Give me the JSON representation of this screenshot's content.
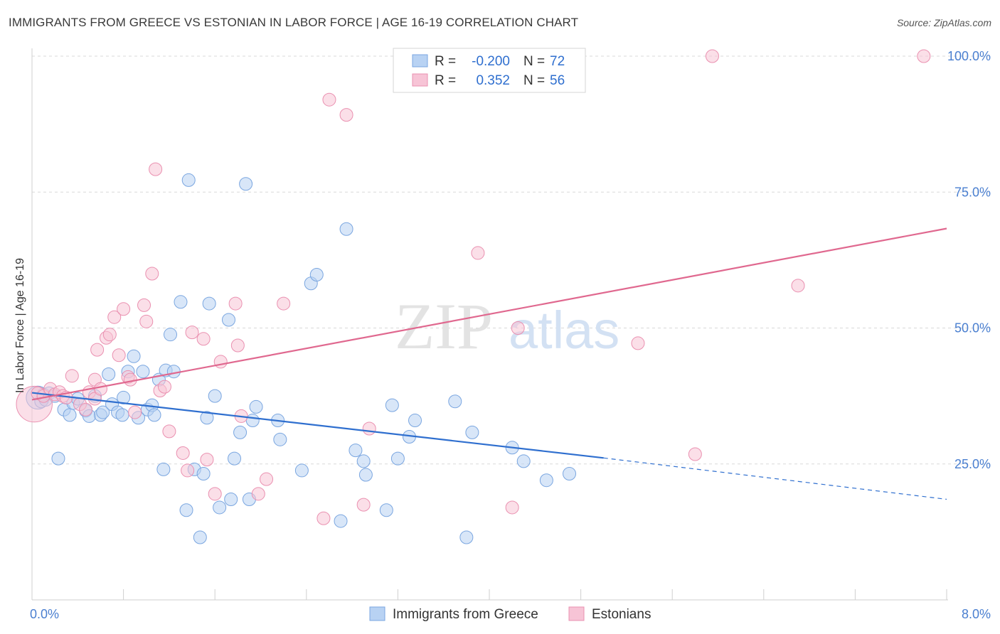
{
  "header": {
    "title": "IMMIGRANTS FROM GREECE VS ESTONIAN IN LABOR FORCE | AGE 16-19 CORRELATION CHART",
    "source": "Source: ZipAtlas.com"
  },
  "watermark": {
    "zip": "ZIP",
    "atlas": "atlas"
  },
  "legend": {
    "rows": [
      {
        "r_label": "R = ",
        "r_value": "-0.200",
        "n_label": "N = ",
        "n_value": "72"
      },
      {
        "r_label": "R = ",
        "r_value": "0.352",
        "n_label": "N = ",
        "n_value": "56"
      }
    ]
  },
  "colors": {
    "blue_fill": "#b8d2f3",
    "blue_stroke": "#7aa6e0",
    "blue_line": "#2f6fcf",
    "pink_fill": "#f7c4d6",
    "pink_stroke": "#ea90b0",
    "pink_line": "#e0688f",
    "accent_text": "#2f6fcf",
    "grid": "#d9d9d9"
  },
  "chart_data": {
    "type": "scatter",
    "title": "IMMIGRANTS FROM GREECE VS ESTONIAN IN LABOR FORCE | AGE 16-19 CORRELATION CHART",
    "xlabel": "",
    "ylabel": "In Labor Force | Age 16-19",
    "xlim": [
      0,
      8
    ],
    "ylim": [
      0,
      105
    ],
    "x_tick_labels": [
      "0.0%",
      "8.0%"
    ],
    "y_ticks": [
      25,
      50,
      75,
      100
    ],
    "y_tick_labels": [
      "25.0%",
      "50.0%",
      "75.0%",
      "100.0%"
    ],
    "grid": true,
    "legend_position": "top-center",
    "series": [
      {
        "name": "Immigrants from Greece",
        "color": "#b8d2f3",
        "trend": {
          "x": [
            0,
            5.0
          ],
          "y": [
            38.1,
            26.1
          ],
          "dashed_to_x": 8,
          "dashed_y_end": 18.5
        },
        "points": [
          [
            0.05,
            37.2,
            1.8
          ],
          [
            0.08,
            36.5,
            1
          ],
          [
            0.1,
            37.8,
            1
          ],
          [
            0.12,
            36.8,
            1
          ],
          [
            0.15,
            38.0,
            1
          ],
          [
            0.2,
            37.5,
            1
          ],
          [
            0.23,
            26.0,
            1
          ],
          [
            0.28,
            35.0,
            1
          ],
          [
            0.33,
            34.0,
            1
          ],
          [
            0.36,
            36.2,
            1
          ],
          [
            0.4,
            37.0,
            1
          ],
          [
            0.47,
            34.8,
            1
          ],
          [
            0.5,
            33.8,
            1
          ],
          [
            0.55,
            37.5,
            1
          ],
          [
            0.6,
            34.0,
            1
          ],
          [
            0.62,
            34.5,
            1
          ],
          [
            0.67,
            41.5,
            1
          ],
          [
            0.7,
            36.0,
            1
          ],
          [
            0.75,
            34.5,
            1
          ],
          [
            0.79,
            34.0,
            1
          ],
          [
            0.8,
            37.2,
            1
          ],
          [
            0.84,
            42.0,
            1
          ],
          [
            0.89,
            44.8,
            1
          ],
          [
            0.93,
            33.5,
            1
          ],
          [
            0.97,
            42.0,
            1
          ],
          [
            1.01,
            35.0,
            1
          ],
          [
            1.05,
            35.8,
            1
          ],
          [
            1.07,
            34.0,
            1
          ],
          [
            1.11,
            40.5,
            1
          ],
          [
            1.15,
            24.0,
            1
          ],
          [
            1.17,
            42.2,
            1
          ],
          [
            1.21,
            48.8,
            1
          ],
          [
            1.24,
            42.0,
            1
          ],
          [
            1.3,
            54.8,
            1
          ],
          [
            1.35,
            16.5,
            1
          ],
          [
            1.37,
            77.2,
            1
          ],
          [
            1.42,
            24.0,
            1
          ],
          [
            1.47,
            11.5,
            1
          ],
          [
            1.5,
            23.2,
            1
          ],
          [
            1.53,
            33.5,
            1
          ],
          [
            1.55,
            54.5,
            1
          ],
          [
            1.6,
            37.5,
            1
          ],
          [
            1.64,
            17.0,
            1
          ],
          [
            1.72,
            51.5,
            1
          ],
          [
            1.74,
            18.5,
            1
          ],
          [
            1.77,
            26.0,
            1
          ],
          [
            1.82,
            30.8,
            1
          ],
          [
            1.87,
            76.5,
            1
          ],
          [
            1.9,
            18.5,
            1
          ],
          [
            1.93,
            33.0,
            1
          ],
          [
            1.96,
            35.5,
            1
          ],
          [
            2.15,
            33.0,
            1
          ],
          [
            2.17,
            29.5,
            1
          ],
          [
            2.36,
            23.8,
            1
          ],
          [
            2.44,
            58.2,
            1
          ],
          [
            2.49,
            59.8,
            1
          ],
          [
            2.7,
            14.5,
            1
          ],
          [
            2.75,
            68.2,
            1
          ],
          [
            2.83,
            27.5,
            1
          ],
          [
            2.9,
            25.5,
            1
          ],
          [
            2.92,
            23.0,
            1
          ],
          [
            3.1,
            16.5,
            1
          ],
          [
            3.15,
            35.8,
            1
          ],
          [
            3.2,
            26.0,
            1
          ],
          [
            3.3,
            30.0,
            1
          ],
          [
            3.35,
            33.0,
            1
          ],
          [
            3.7,
            36.5,
            1
          ],
          [
            3.8,
            11.5,
            1
          ],
          [
            3.85,
            30.8,
            1
          ],
          [
            4.2,
            28.0,
            1
          ],
          [
            4.3,
            25.5,
            1
          ],
          [
            4.5,
            22.0,
            1
          ],
          [
            4.7,
            23.2,
            1
          ]
        ]
      },
      {
        "name": "Estonians",
        "color": "#f7c4d6",
        "trend": {
          "x": [
            0,
            8
          ],
          "y": [
            36.8,
            68.3
          ]
        },
        "points": [
          [
            0.02,
            36.0,
            2.8
          ],
          [
            0.05,
            38.0,
            1
          ],
          [
            0.1,
            37.5,
            1
          ],
          [
            0.16,
            38.8,
            1
          ],
          [
            0.2,
            37.8,
            1
          ],
          [
            0.24,
            38.2,
            1
          ],
          [
            0.27,
            37.5,
            1
          ],
          [
            0.3,
            37.2,
            1
          ],
          [
            0.35,
            41.2,
            1
          ],
          [
            0.42,
            36.0,
            1
          ],
          [
            0.47,
            35.0,
            1
          ],
          [
            0.5,
            38.2,
            1
          ],
          [
            0.55,
            37.0,
            1
          ],
          [
            0.55,
            40.5,
            1
          ],
          [
            0.57,
            46.0,
            1
          ],
          [
            0.6,
            38.8,
            1
          ],
          [
            0.65,
            48.2,
            1
          ],
          [
            0.68,
            48.8,
            1
          ],
          [
            0.72,
            52.0,
            1
          ],
          [
            0.76,
            45.0,
            1
          ],
          [
            0.8,
            53.5,
            1
          ],
          [
            0.84,
            41.0,
            1
          ],
          [
            0.86,
            40.5,
            1
          ],
          [
            0.9,
            34.5,
            1
          ],
          [
            0.98,
            54.2,
            1
          ],
          [
            1.0,
            51.2,
            1
          ],
          [
            1.05,
            60.0,
            1
          ],
          [
            1.08,
            79.2,
            1
          ],
          [
            1.12,
            38.5,
            1
          ],
          [
            1.16,
            39.2,
            1
          ],
          [
            1.2,
            31.0,
            1
          ],
          [
            1.32,
            27.0,
            1
          ],
          [
            1.36,
            23.8,
            1
          ],
          [
            1.4,
            49.2,
            1
          ],
          [
            1.5,
            48.0,
            1
          ],
          [
            1.53,
            25.8,
            1
          ],
          [
            1.6,
            19.5,
            1
          ],
          [
            1.65,
            43.8,
            1
          ],
          [
            1.78,
            54.5,
            1
          ],
          [
            1.8,
            46.8,
            1
          ],
          [
            1.83,
            33.8,
            1
          ],
          [
            1.98,
            19.5,
            1
          ],
          [
            2.05,
            22.2,
            1
          ],
          [
            2.2,
            54.5,
            1
          ],
          [
            2.55,
            15.0,
            1
          ],
          [
            2.6,
            92.0,
            1
          ],
          [
            2.75,
            89.2,
            1
          ],
          [
            2.9,
            17.5,
            1
          ],
          [
            2.95,
            31.5,
            1
          ],
          [
            3.9,
            63.8,
            1
          ],
          [
            4.2,
            17.0,
            1
          ],
          [
            4.25,
            50.0,
            1
          ],
          [
            5.3,
            47.2,
            1
          ],
          [
            5.8,
            26.8,
            1
          ],
          [
            5.95,
            100.0,
            1
          ],
          [
            6.7,
            57.8,
            1
          ],
          [
            7.8,
            100.0,
            1
          ]
        ]
      }
    ]
  },
  "bottom_legend": {
    "items": [
      "Immigrants from Greece",
      "Estonians"
    ]
  }
}
